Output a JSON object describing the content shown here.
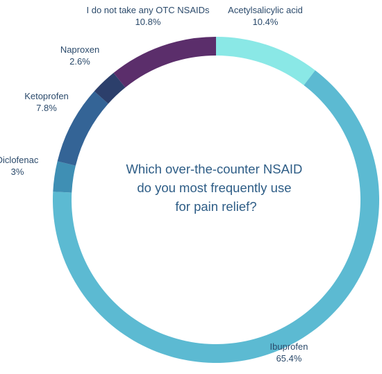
{
  "chart_data": {
    "type": "pie",
    "variant": "donut",
    "title_lines": [
      "Which over-the-counter NSAID",
      "do you most frequently use",
      "for pain relief?"
    ],
    "slices": [
      {
        "label": "Acetylsalicylic acid",
        "value": 10.4,
        "display": "10.4%",
        "color": "#8ae8e6"
      },
      {
        "label": "Ibuprofen",
        "value": 65.4,
        "display": "65.4%",
        "color": "#5cbad2"
      },
      {
        "label": "Diclofenac",
        "value": 3,
        "display": "3%",
        "color": "#3f8fb4"
      },
      {
        "label": "Ketoprofen",
        "value": 7.8,
        "display": "7.8%",
        "color": "#346496"
      },
      {
        "label": "Naproxen",
        "value": 2.6,
        "display": "2.6%",
        "color": "#2c3f6b"
      },
      {
        "label": "I do not take any OTC NSAIDs",
        "value": 10.8,
        "display": "10.8%",
        "color": "#5b2e6b"
      }
    ]
  }
}
